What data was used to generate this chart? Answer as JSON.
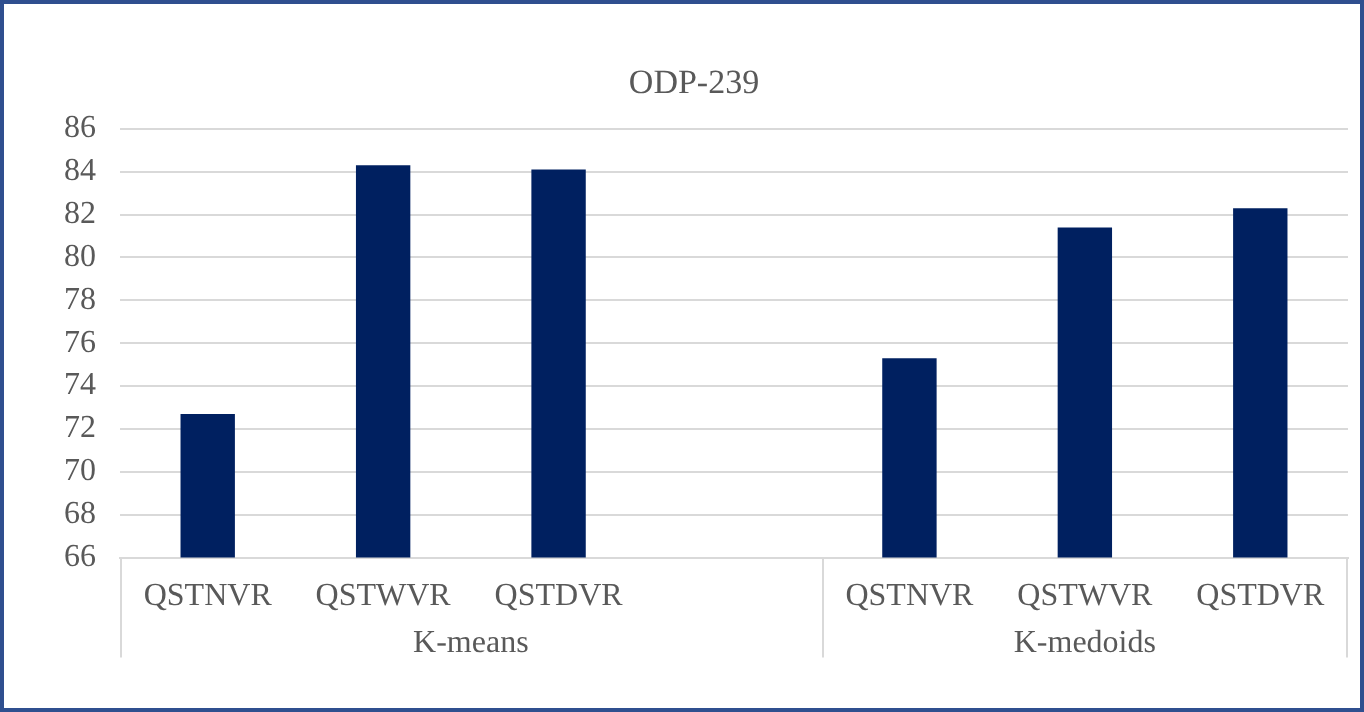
{
  "chart_data": {
    "type": "bar",
    "title": "ODP-239",
    "categories": [
      "QSTNVR",
      "QSTWVR",
      "QSTDVR",
      null,
      "QSTNVR",
      "QSTWVR",
      "QSTDVR"
    ],
    "values": [
      72.7,
      84.3,
      84.1,
      null,
      75.3,
      81.4,
      82.3
    ],
    "color": "#002060",
    "annotations": [
      "K-means",
      "K-medoids"
    ],
    "ylim": [
      66,
      86
    ],
    "yticks": [
      66,
      68,
      70,
      72,
      74,
      76,
      78,
      80,
      82,
      84,
      86
    ],
    "grid": "y",
    "legend": false
  }
}
